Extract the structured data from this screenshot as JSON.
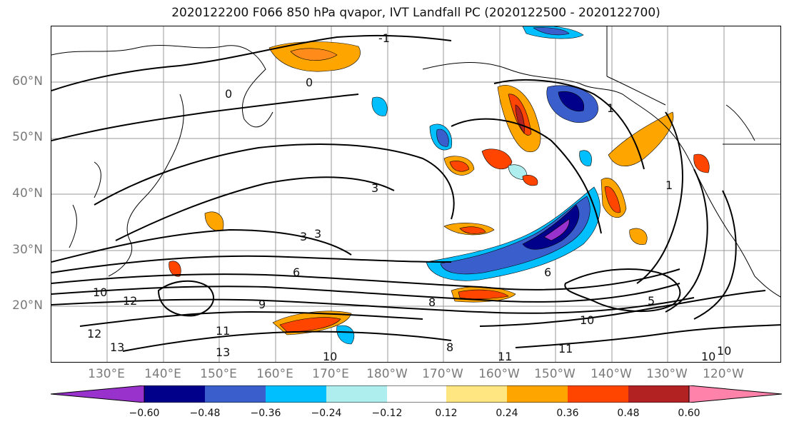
{
  "title": "2020122200 F066 850 hPa qvapor, IVT Landfall PC (2020122500 - 2020122700)",
  "lat_labels": [
    "60°N",
    "50°N",
    "40°N",
    "30°N",
    "20°N"
  ],
  "lon_labels": [
    "130°E",
    "140°E",
    "150°E",
    "160°E",
    "170°E",
    "180°W",
    "170°W",
    "160°W",
    "150°W",
    "140°W",
    "130°W",
    "120°W"
  ],
  "contour_labels": [
    "-1",
    "0",
    "0",
    "1",
    "3",
    "3",
    "3",
    "6",
    "6",
    "8",
    "8",
    "9",
    "10",
    "10",
    "10",
    "10",
    "11",
    "11",
    "11",
    "12",
    "12",
    "13",
    "13",
    "5",
    "1",
    "10"
  ],
  "colorbar": {
    "ticks": [
      "−0.60",
      "−0.48",
      "−0.36",
      "−0.24",
      "−0.12",
      "0.12",
      "0.24",
      "0.36",
      "0.48",
      "0.60"
    ],
    "colors": [
      "#9932cc",
      "#00008b",
      "#3a5fcd",
      "#00bfff",
      "#afeeee",
      "#ffffff",
      "#ffe680",
      "#ffa500",
      "#ff4500",
      "#b22222",
      "#ff82ab"
    ]
  }
}
